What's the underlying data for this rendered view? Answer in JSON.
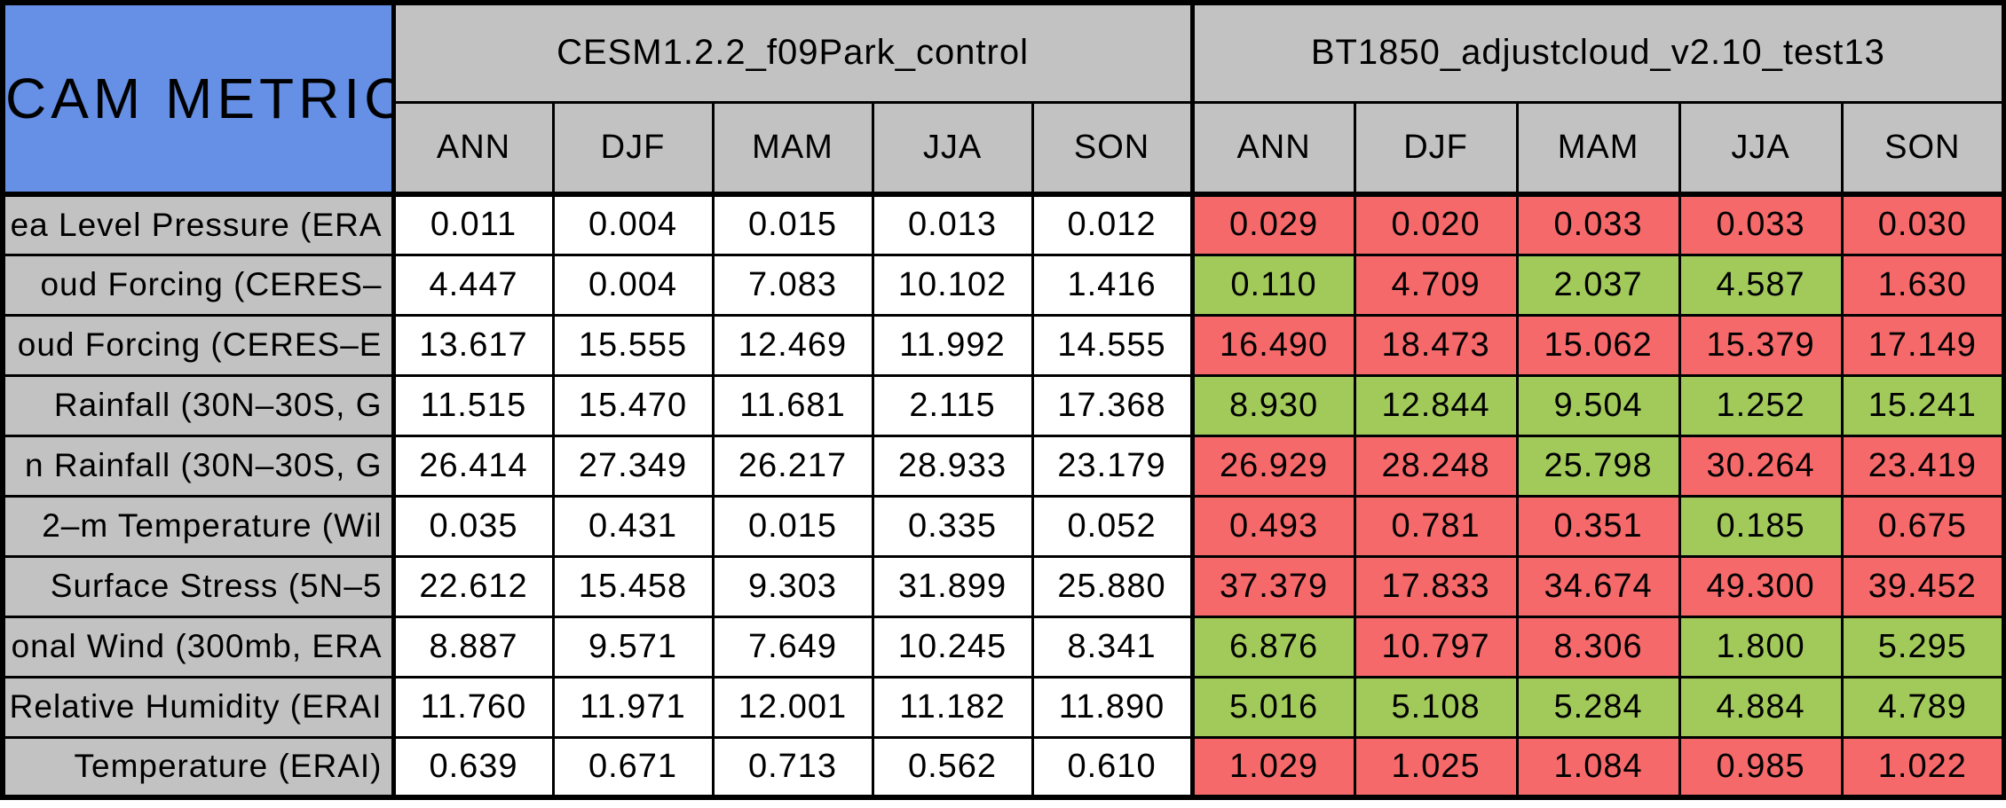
{
  "chart_data": {
    "type": "table",
    "title": "CAM METRICS",
    "title_background": "#6590e6",
    "header_color": "#c2c2c2",
    "status_colors": {
      "better": "#a2ca5b",
      "worse": "#f6696a",
      "control_neutral": "#ffffff"
    },
    "column_groups": [
      {
        "label": "CESM1.2.2_f09Park_control",
        "seasons": [
          "ANN",
          "DJF",
          "MAM",
          "JJA",
          "SON"
        ]
      },
      {
        "label": "BT1850_adjustcloud_v2.10_test13",
        "seasons": [
          "ANN",
          "DJF",
          "MAM",
          "JJA",
          "SON"
        ]
      }
    ],
    "rows": [
      {
        "label": "ea Level Pressure (ERA",
        "control_values": [
          "0.011",
          "0.004",
          "0.015",
          "0.013",
          "0.012"
        ],
        "test_values": [
          "0.029",
          "0.020",
          "0.033",
          "0.033",
          "0.030"
        ],
        "test_status": [
          "worse",
          "worse",
          "worse",
          "worse",
          "worse"
        ]
      },
      {
        "label": "oud Forcing (CERES–",
        "control_values": [
          "4.447",
          "0.004",
          "7.083",
          "10.102",
          "1.416"
        ],
        "test_values": [
          "0.110",
          "4.709",
          "2.037",
          "4.587",
          "1.630"
        ],
        "test_status": [
          "better",
          "worse",
          "better",
          "better",
          "worse"
        ]
      },
      {
        "label": "oud Forcing (CERES–E",
        "control_values": [
          "13.617",
          "15.555",
          "12.469",
          "11.992",
          "14.555"
        ],
        "test_values": [
          "16.490",
          "18.473",
          "15.062",
          "15.379",
          "17.149"
        ],
        "test_status": [
          "worse",
          "worse",
          "worse",
          "worse",
          "worse"
        ]
      },
      {
        "label": "Rainfall (30N–30S, G",
        "control_values": [
          "11.515",
          "15.470",
          "11.681",
          "2.115",
          "17.368"
        ],
        "test_values": [
          "8.930",
          "12.844",
          "9.504",
          "1.252",
          "15.241"
        ],
        "test_status": [
          "better",
          "better",
          "better",
          "better",
          "better"
        ]
      },
      {
        "label": "n Rainfall (30N–30S, G",
        "control_values": [
          "26.414",
          "27.349",
          "26.217",
          "28.933",
          "23.179"
        ],
        "test_values": [
          "26.929",
          "28.248",
          "25.798",
          "30.264",
          "23.419"
        ],
        "test_status": [
          "worse",
          "worse",
          "better",
          "worse",
          "worse"
        ]
      },
      {
        "label": "2–m Temperature (Wil",
        "control_values": [
          "0.035",
          "0.431",
          "0.015",
          "0.335",
          "0.052"
        ],
        "test_values": [
          "0.493",
          "0.781",
          "0.351",
          "0.185",
          "0.675"
        ],
        "test_status": [
          "worse",
          "worse",
          "worse",
          "better",
          "worse"
        ]
      },
      {
        "label": "Surface Stress (5N–5",
        "control_values": [
          "22.612",
          "15.458",
          "9.303",
          "31.899",
          "25.880"
        ],
        "test_values": [
          "37.379",
          "17.833",
          "34.674",
          "49.300",
          "39.452"
        ],
        "test_status": [
          "worse",
          "worse",
          "worse",
          "worse",
          "worse"
        ]
      },
      {
        "label": "onal Wind (300mb, ERA",
        "control_values": [
          "8.887",
          "9.571",
          "7.649",
          "10.245",
          "8.341"
        ],
        "test_values": [
          "6.876",
          "10.797",
          "8.306",
          "1.800",
          "5.295"
        ],
        "test_status": [
          "better",
          "worse",
          "worse",
          "better",
          "better"
        ]
      },
      {
        "label": "Relative Humidity (ERAI",
        "control_values": [
          "11.760",
          "11.971",
          "12.001",
          "11.182",
          "11.890"
        ],
        "test_values": [
          "5.016",
          "5.108",
          "5.284",
          "4.884",
          "4.789"
        ],
        "test_status": [
          "better",
          "better",
          "better",
          "better",
          "better"
        ]
      },
      {
        "label": "Temperature (ERAI)",
        "control_values": [
          "0.639",
          "0.671",
          "0.713",
          "0.562",
          "0.610"
        ],
        "test_values": [
          "1.029",
          "1.025",
          "1.084",
          "0.985",
          "1.022"
        ],
        "test_status": [
          "worse",
          "worse",
          "worse",
          "worse",
          "worse"
        ]
      }
    ]
  }
}
